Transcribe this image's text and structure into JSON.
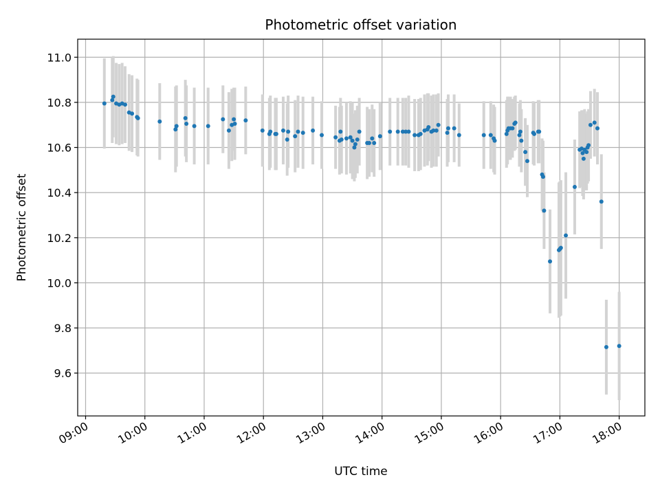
{
  "chart_data": {
    "type": "scatter",
    "title": "Photometric offset variation",
    "xlabel": "UTC time",
    "ylabel": "Photometric offset",
    "x_ticks": [
      "09:00",
      "10:00",
      "11:00",
      "12:00",
      "13:00",
      "14:00",
      "15:00",
      "16:00",
      "17:00",
      "18:00"
    ],
    "y_ticks": [
      "9.6",
      "9.8",
      "10.0",
      "10.2",
      "10.4",
      "10.6",
      "10.8",
      "11.0"
    ],
    "xlim": [
      "08:52",
      "18:26"
    ],
    "ylim": [
      9.41,
      11.08
    ],
    "grid": true,
    "marker_color": "#1f77b4",
    "errorbar_color": "#d3d3d3",
    "points": [
      {
        "t": "09:19",
        "y": 10.795,
        "e": 0.2
      },
      {
        "t": "09:27",
        "y": 10.81,
        "e": 0.19
      },
      {
        "t": "09:28",
        "y": 10.825,
        "e": 0.18
      },
      {
        "t": "09:31",
        "y": 10.795,
        "e": 0.18
      },
      {
        "t": "09:34",
        "y": 10.79,
        "e": 0.18
      },
      {
        "t": "09:37",
        "y": 10.795,
        "e": 0.18
      },
      {
        "t": "09:40",
        "y": 10.79,
        "e": 0.17
      },
      {
        "t": "09:44",
        "y": 10.755,
        "e": 0.17
      },
      {
        "t": "09:47",
        "y": 10.75,
        "e": 0.17
      },
      {
        "t": "09:52",
        "y": 10.735,
        "e": 0.17
      },
      {
        "t": "09:53",
        "y": 10.73,
        "e": 0.17
      },
      {
        "t": "10:15",
        "y": 10.715,
        "e": 0.17
      },
      {
        "t": "10:31",
        "y": 10.68,
        "e": 0.19
      },
      {
        "t": "10:32",
        "y": 10.695,
        "e": 0.18
      },
      {
        "t": "10:41",
        "y": 10.73,
        "e": 0.17
      },
      {
        "t": "10:42",
        "y": 10.705,
        "e": 0.17
      },
      {
        "t": "10:50",
        "y": 10.695,
        "e": 0.17
      },
      {
        "t": "11:04",
        "y": 10.695,
        "e": 0.17
      },
      {
        "t": "11:19",
        "y": 10.725,
        "e": 0.15
      },
      {
        "t": "11:25",
        "y": 10.675,
        "e": 0.17
      },
      {
        "t": "11:28",
        "y": 10.7,
        "e": 0.16
      },
      {
        "t": "11:30",
        "y": 10.725,
        "e": 0.14
      },
      {
        "t": "11:31",
        "y": 10.705,
        "e": 0.16
      },
      {
        "t": "11:42",
        "y": 10.72,
        "e": 0.15
      },
      {
        "t": "11:59",
        "y": 10.675,
        "e": 0.16
      },
      {
        "t": "12:06",
        "y": 10.66,
        "e": 0.16
      },
      {
        "t": "12:07",
        "y": 10.67,
        "e": 0.16
      },
      {
        "t": "12:12",
        "y": 10.66,
        "e": 0.16
      },
      {
        "t": "12:13",
        "y": 10.66,
        "e": 0.16
      },
      {
        "t": "12:20",
        "y": 10.675,
        "e": 0.15
      },
      {
        "t": "12:24",
        "y": 10.635,
        "e": 0.16
      },
      {
        "t": "12:25",
        "y": 10.67,
        "e": 0.16
      },
      {
        "t": "12:32",
        "y": 10.65,
        "e": 0.16
      },
      {
        "t": "12:35",
        "y": 10.67,
        "e": 0.16
      },
      {
        "t": "12:40",
        "y": 10.665,
        "e": 0.16
      },
      {
        "t": "12:50",
        "y": 10.675,
        "e": 0.15
      },
      {
        "t": "12:59",
        "y": 10.655,
        "e": 0.15
      },
      {
        "t": "13:13",
        "y": 10.645,
        "e": 0.14
      },
      {
        "t": "13:17",
        "y": 10.63,
        "e": 0.15
      },
      {
        "t": "13:18",
        "y": 10.67,
        "e": 0.15
      },
      {
        "t": "13:19",
        "y": 10.635,
        "e": 0.15
      },
      {
        "t": "13:24",
        "y": 10.64,
        "e": 0.16
      },
      {
        "t": "13:28",
        "y": 10.645,
        "e": 0.16
      },
      {
        "t": "13:30",
        "y": 10.63,
        "e": 0.17
      },
      {
        "t": "13:32",
        "y": 10.6,
        "e": 0.15
      },
      {
        "t": "13:33",
        "y": 10.615,
        "e": 0.15
      },
      {
        "t": "13:35",
        "y": 10.635,
        "e": 0.15
      },
      {
        "t": "13:37",
        "y": 10.67,
        "e": 0.15
      },
      {
        "t": "13:45",
        "y": 10.62,
        "e": 0.16
      },
      {
        "t": "13:47",
        "y": 10.62,
        "e": 0.15
      },
      {
        "t": "13:50",
        "y": 10.64,
        "e": 0.15
      },
      {
        "t": "13:52",
        "y": 10.62,
        "e": 0.15
      },
      {
        "t": "13:58",
        "y": 10.65,
        "e": 0.15
      },
      {
        "t": "14:08",
        "y": 10.67,
        "e": 0.15
      },
      {
        "t": "14:16",
        "y": 10.67,
        "e": 0.15
      },
      {
        "t": "14:21",
        "y": 10.67,
        "e": 0.15
      },
      {
        "t": "14:24",
        "y": 10.67,
        "e": 0.15
      },
      {
        "t": "14:27",
        "y": 10.67,
        "e": 0.16
      },
      {
        "t": "14:33",
        "y": 10.655,
        "e": 0.16
      },
      {
        "t": "14:37",
        "y": 10.655,
        "e": 0.16
      },
      {
        "t": "14:39",
        "y": 10.66,
        "e": 0.16
      },
      {
        "t": "14:43",
        "y": 10.675,
        "e": 0.16
      },
      {
        "t": "14:46",
        "y": 10.68,
        "e": 0.16
      },
      {
        "t": "14:47",
        "y": 10.69,
        "e": 0.15
      },
      {
        "t": "14:50",
        "y": 10.67,
        "e": 0.16
      },
      {
        "t": "14:52",
        "y": 10.675,
        "e": 0.16
      },
      {
        "t": "14:55",
        "y": 10.675,
        "e": 0.16
      },
      {
        "t": "14:57",
        "y": 10.7,
        "e": 0.14
      },
      {
        "t": "15:06",
        "y": 10.665,
        "e": 0.15
      },
      {
        "t": "15:07",
        "y": 10.685,
        "e": 0.15
      },
      {
        "t": "15:13",
        "y": 10.685,
        "e": 0.15
      },
      {
        "t": "15:18",
        "y": 10.655,
        "e": 0.14
      },
      {
        "t": "15:43",
        "y": 10.655,
        "e": 0.15
      },
      {
        "t": "15:50",
        "y": 10.655,
        "e": 0.15
      },
      {
        "t": "15:53",
        "y": 10.64,
        "e": 0.15
      },
      {
        "t": "15:54",
        "y": 10.63,
        "e": 0.15
      },
      {
        "t": "16:06",
        "y": 10.66,
        "e": 0.15
      },
      {
        "t": "16:07",
        "y": 10.675,
        "e": 0.15
      },
      {
        "t": "16:08",
        "y": 10.685,
        "e": 0.14
      },
      {
        "t": "16:10",
        "y": 10.685,
        "e": 0.14
      },
      {
        "t": "16:12",
        "y": 10.685,
        "e": 0.13
      },
      {
        "t": "16:14",
        "y": 10.705,
        "e": 0.12
      },
      {
        "t": "16:15",
        "y": 10.71,
        "e": 0.12
      },
      {
        "t": "16:19",
        "y": 10.655,
        "e": 0.14
      },
      {
        "t": "16:20",
        "y": 10.67,
        "e": 0.14
      },
      {
        "t": "16:21",
        "y": 10.63,
        "e": 0.14
      },
      {
        "t": "16:25",
        "y": 10.58,
        "e": 0.15
      },
      {
        "t": "16:27",
        "y": 10.54,
        "e": 0.16
      },
      {
        "t": "16:33",
        "y": 10.665,
        "e": 0.14
      },
      {
        "t": "16:34",
        "y": 10.66,
        "e": 0.14
      },
      {
        "t": "16:38",
        "y": 10.67,
        "e": 0.14
      },
      {
        "t": "16:39",
        "y": 10.67,
        "e": 0.14
      },
      {
        "t": "16:42",
        "y": 10.48,
        "e": 0.16
      },
      {
        "t": "16:43",
        "y": 10.47,
        "e": 0.16
      },
      {
        "t": "16:44",
        "y": 10.32,
        "e": 0.17
      },
      {
        "t": "16:50",
        "y": 10.095,
        "e": 0.23
      },
      {
        "t": "16:59",
        "y": 10.145,
        "e": 0.3
      },
      {
        "t": "17:00",
        "y": 10.15,
        "e": 0.3
      },
      {
        "t": "17:01",
        "y": 10.155,
        "e": 0.3
      },
      {
        "t": "17:06",
        "y": 10.21,
        "e": 0.28
      },
      {
        "t": "17:15",
        "y": 10.425,
        "e": 0.21
      },
      {
        "t": "17:20",
        "y": 10.59,
        "e": 0.17
      },
      {
        "t": "17:22",
        "y": 10.595,
        "e": 0.17
      },
      {
        "t": "17:23",
        "y": 10.575,
        "e": 0.19
      },
      {
        "t": "17:24",
        "y": 10.55,
        "e": 0.18
      },
      {
        "t": "17:25",
        "y": 10.59,
        "e": 0.18
      },
      {
        "t": "17:27",
        "y": 10.58,
        "e": 0.17
      },
      {
        "t": "17:28",
        "y": 10.6,
        "e": 0.16
      },
      {
        "t": "17:29",
        "y": 10.61,
        "e": 0.16
      },
      {
        "t": "17:31",
        "y": 10.7,
        "e": 0.15
      },
      {
        "t": "17:35",
        "y": 10.71,
        "e": 0.15
      },
      {
        "t": "17:38",
        "y": 10.685,
        "e": 0.16
      },
      {
        "t": "17:42",
        "y": 10.36,
        "e": 0.21
      },
      {
        "t": "17:47",
        "y": 9.715,
        "e": 0.21
      },
      {
        "t": "18:00",
        "y": 9.72,
        "e": 0.24
      }
    ]
  }
}
